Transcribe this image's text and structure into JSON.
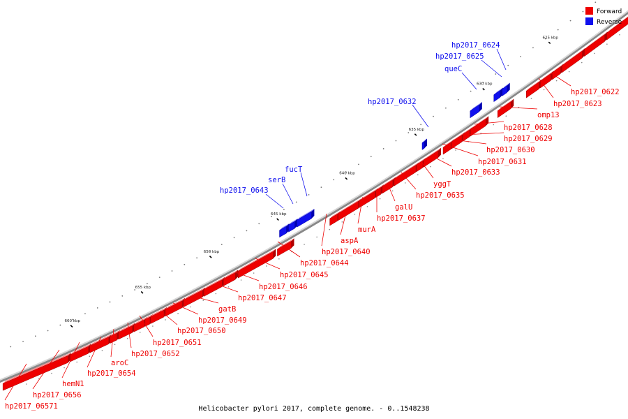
{
  "legend": {
    "forward_label": "Forward",
    "reverse_label": "Reverse",
    "forward_color": "#ee0000",
    "reverse_color": "#1010ee"
  },
  "caption": "Helicobacter pylori 2017, complete genome. - 0..1548238",
  "kbp_ticks": [
    "625 kbp",
    "630 kbp",
    "635 kbp",
    "640 kbp",
    "645 kbp",
    "650 kbp",
    "655 kbp",
    "660 kbp"
  ],
  "forward_labels": [
    "hp2017_0622",
    "hp2017_0623",
    "omp13",
    "hp2017_0628",
    "hp2017_0629",
    "hp2017_0630",
    "hp2017_0631",
    "hp2017_0633",
    "yggT",
    "hp2017_0635",
    "galU",
    "hp2017_0637",
    "murA",
    "aspA",
    "hp2017_0640",
    "hp2017_0644",
    "hp2017_0645",
    "hp2017_0646",
    "hp2017_0647",
    "gatB",
    "hp2017_0649",
    "hp2017_0650",
    "hp2017_0651",
    "hp2017_0652",
    "aroC",
    "hp2017_0654",
    "hemN1",
    "hp2017_0656",
    "hp2017_06571"
  ],
  "reverse_labels": [
    "hp2017_0624",
    "hp2017_0625",
    "queC",
    "hp2017_0632",
    "fucT",
    "serB",
    "hp2017_0643"
  ]
}
